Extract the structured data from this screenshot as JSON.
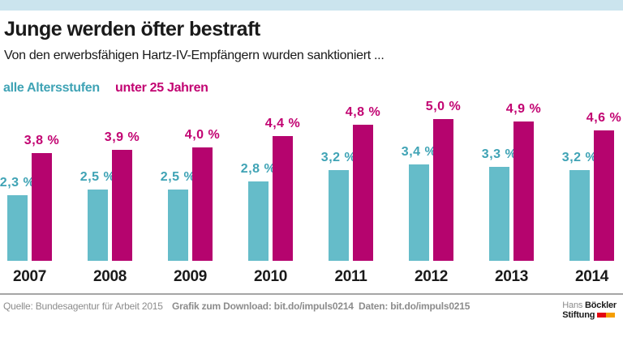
{
  "header": {
    "title": "Junge werden öfter bestraft",
    "subtitle": "Von den erwerbsfähigen Hartz-IV-Empfängern wurden sanktioniert ..."
  },
  "legend": {
    "all_ages": "alle Altersstufen",
    "under_25": "unter 25 Jahren"
  },
  "colors": {
    "accent_strip": "#cbe4ee",
    "teal_bar": "#65bcc9",
    "teal_text": "#3fa3b5",
    "magenta_bar": "#b5046e",
    "magenta_text": "#c20472",
    "footer_gray": "#8c8c8c",
    "logo_red": "#e30613",
    "logo_orange": "#f59e00"
  },
  "chart_data": {
    "type": "bar",
    "categories": [
      "2007",
      "2008",
      "2009",
      "2010",
      "2011",
      "2012",
      "2013",
      "2014"
    ],
    "series": [
      {
        "name": "alle Altersstufen",
        "color_key": "teal",
        "values": [
          2.3,
          2.5,
          2.5,
          2.8,
          3.2,
          3.4,
          3.3,
          3.2
        ],
        "labels": [
          "2,3 %",
          "2,5 %",
          "2,5 %",
          "2,8 %",
          "3,2 %",
          "3,4 %",
          "3,3 %",
          "3,2 %"
        ]
      },
      {
        "name": "unter 25 Jahren",
        "color_key": "magenta",
        "values": [
          3.8,
          3.9,
          4.0,
          4.4,
          4.8,
          5.0,
          4.9,
          4.6
        ],
        "labels": [
          "3,8 %",
          "3,9 %",
          "4,0 %",
          "4,4 %",
          "4,8 %",
          "5,0 %",
          "4,9 %",
          "4,6 %"
        ]
      }
    ],
    "unit": "%",
    "ylim": [
      0,
      5.5
    ],
    "grid": false,
    "legend_position": "top-left",
    "value_labels_shown": true
  },
  "footer": {
    "source": "Quelle: Bundesagentur für Arbeit 2015",
    "download": "Grafik zum Download: bit.do/impuls0214",
    "data": "Daten: bit.do/impuls0215",
    "logo": {
      "name_regular": "Hans",
      "name_bold": "Böckler",
      "line2": "Stiftung"
    }
  }
}
